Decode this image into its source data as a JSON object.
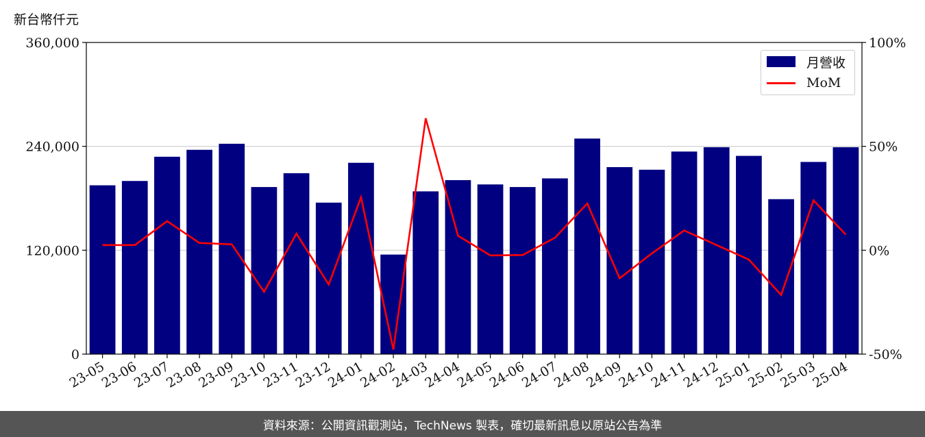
{
  "unit_label": "新台幣仟元",
  "footer_text": "資料來源：公開資訊觀測站，TechNews 製表，確切最新訊息以原站公告為準",
  "colors": {
    "bar": "#000080",
    "line": "#ff0000",
    "footer_bg": "#555555",
    "grid": "#cccccc"
  },
  "legend": {
    "bar_label": "月營收",
    "line_label": "MoM"
  },
  "chart_data": {
    "type": "bar",
    "categories": [
      "23-05",
      "23-06",
      "23-07",
      "23-08",
      "23-09",
      "23-10",
      "23-11",
      "23-12",
      "24-01",
      "24-02",
      "24-03",
      "24-04",
      "24-05",
      "24-06",
      "24-07",
      "24-08",
      "24-09",
      "24-10",
      "24-11",
      "24-12",
      "25-01",
      "25-02",
      "25-03",
      "25-04"
    ],
    "series": [
      {
        "name": "月營收",
        "axis": "left",
        "type": "bar",
        "values": [
          195000,
          200000,
          228000,
          236000,
          243000,
          193000,
          209000,
          175000,
          221000,
          115000,
          188000,
          201000,
          196000,
          193000,
          203000,
          249000,
          216000,
          213000,
          234000,
          239000,
          229000,
          179000,
          222000,
          239000
        ]
      },
      {
        "name": "MoM",
        "axis": "right",
        "type": "line",
        "values": [
          2.5,
          2.5,
          14.0,
          3.5,
          2.8,
          -20.0,
          8.0,
          -16.5,
          25.5,
          -47.8,
          63.5,
          7.0,
          -2.5,
          -2.3,
          6.0,
          22.5,
          -13.5,
          -1.5,
          9.5,
          2.5,
          -4.5,
          -21.5,
          24.0,
          7.5
        ]
      }
    ],
    "y_left": {
      "min": 0,
      "max": 360000,
      "ticks": [
        0,
        120000,
        240000,
        360000
      ],
      "tick_labels": [
        "0",
        "120,000",
        "240,000",
        "360,000"
      ]
    },
    "y_right": {
      "min": -50,
      "max": 100,
      "ticks": [
        -50,
        0,
        50,
        100
      ],
      "tick_labels": [
        "-50%",
        "0%",
        "50%",
        "100%"
      ]
    },
    "grid": "horizontal",
    "legend_position": "top-right"
  }
}
